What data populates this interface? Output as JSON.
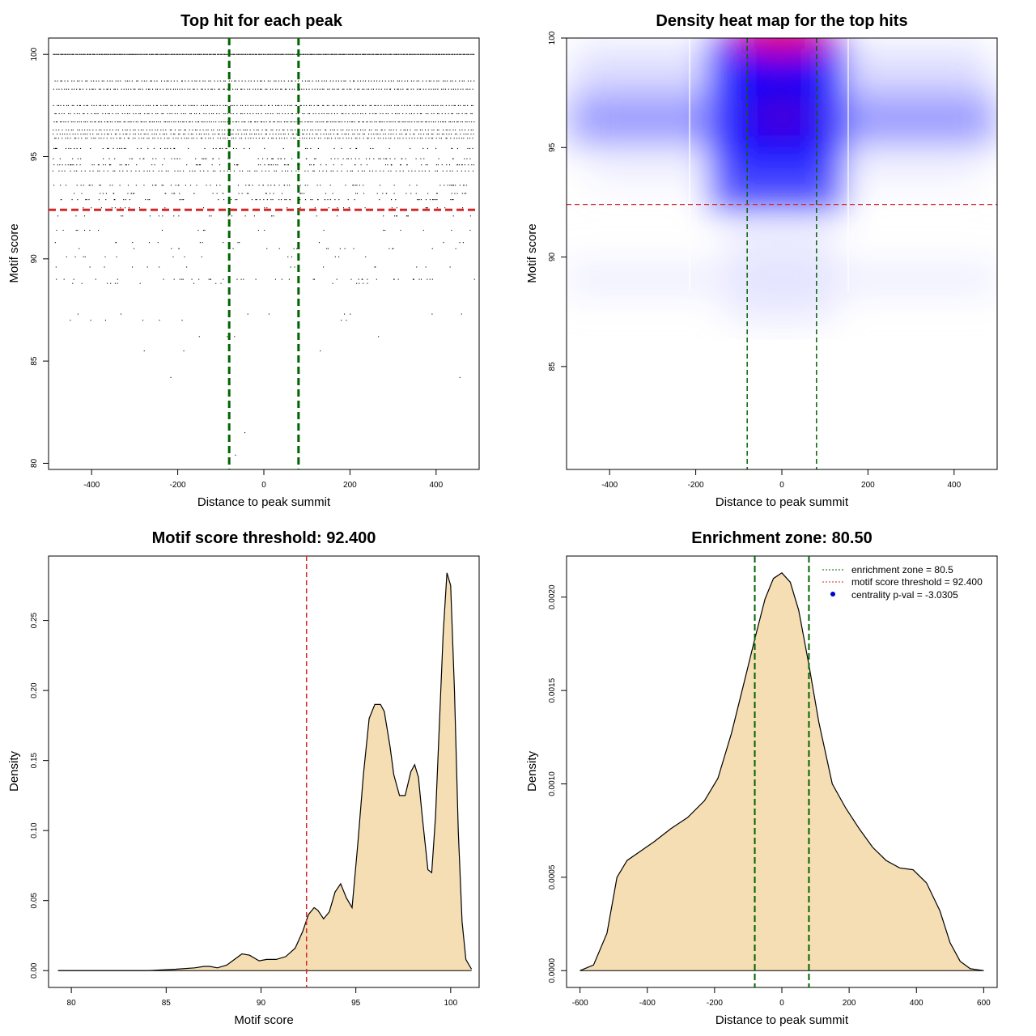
{
  "chart_data": [
    {
      "id": "scatter",
      "type": "scatter",
      "title": "Top hit for each peak",
      "xlabel": "Distance to peak summit",
      "ylabel": "Motif score",
      "xlim": [
        -500,
        500
      ],
      "ylim": [
        79.7,
        100.8
      ],
      "xticks": [
        -400,
        -200,
        0,
        200,
        400
      ],
      "yticks": [
        80,
        85,
        90,
        95,
        100
      ],
      "vlines": [
        {
          "x": -80.5,
          "color": "#006400",
          "style": "dashed"
        },
        {
          "x": 80.5,
          "color": "#006400",
          "style": "dashed"
        }
      ],
      "hline": {
        "y": 92.4,
        "color": "#d62728",
        "style": "dashed"
      },
      "point_bands": [
        {
          "score": 100.0,
          "count": 420
        },
        {
          "score": 98.7,
          "count": 150
        },
        {
          "score": 98.3,
          "count": 170
        },
        {
          "score": 97.5,
          "count": 170
        },
        {
          "score": 97.1,
          "count": 150
        },
        {
          "score": 96.7,
          "count": 200
        },
        {
          "score": 96.3,
          "count": 150
        },
        {
          "score": 96.1,
          "count": 160
        },
        {
          "score": 95.9,
          "count": 150
        },
        {
          "score": 95.4,
          "count": 70
        },
        {
          "score": 94.9,
          "count": 80
        },
        {
          "score": 94.6,
          "count": 100
        },
        {
          "score": 94.3,
          "count": 110
        },
        {
          "score": 93.6,
          "count": 80
        },
        {
          "score": 93.2,
          "count": 60
        },
        {
          "score": 92.9,
          "count": 70
        },
        {
          "score": 92.5,
          "count": 30
        },
        {
          "score": 92.1,
          "count": 30
        },
        {
          "score": 91.4,
          "count": 20
        },
        {
          "score": 90.8,
          "count": 15
        },
        {
          "score": 90.5,
          "count": 20
        },
        {
          "score": 90.1,
          "count": 15
        },
        {
          "score": 89.6,
          "count": 15
        },
        {
          "score": 89.0,
          "count": 45
        },
        {
          "score": 88.8,
          "count": 15
        },
        {
          "score": 87.3,
          "count": 8
        },
        {
          "score": 87.0,
          "count": 8
        },
        {
          "score": 86.2,
          "count": 4
        },
        {
          "score": 85.5,
          "count": 3
        },
        {
          "score": 84.2,
          "count": 2
        },
        {
          "score": 81.5,
          "count": 1
        },
        {
          "score": 80.4,
          "count": 1
        }
      ]
    },
    {
      "id": "heatmap",
      "type": "heatmap",
      "title": "Density heat map for the top hits",
      "xlabel": "Distance to peak summit",
      "ylabel": "Motif score",
      "xlim": [
        -500,
        500
      ],
      "ylim": [
        80.3,
        100.0
      ],
      "xticks": [
        -400,
        -200,
        0,
        200,
        400
      ],
      "yticks": [
        85,
        90,
        95,
        100
      ],
      "vlines": [
        {
          "x": -80.5,
          "color": "#006400",
          "style": "dashed"
        },
        {
          "x": 80.5,
          "color": "#006400",
          "style": "dashed"
        }
      ],
      "hline": {
        "y": 92.4,
        "color": "#d62728",
        "style": "dashed"
      },
      "colormap": [
        "#ffffff",
        "#0000ff",
        "#ff0000"
      ],
      "hot_spots": [
        {
          "x": 0,
          "y": 100.0,
          "level": "high"
        },
        {
          "x": 0,
          "y": 96.4,
          "level": "high"
        },
        {
          "x": 0,
          "y": 98.2,
          "level": "medium"
        },
        {
          "x": -250,
          "y": 96.4,
          "level": "medium"
        },
        {
          "x": 250,
          "y": 96.4,
          "level": "medium"
        }
      ]
    },
    {
      "id": "score_density",
      "type": "area",
      "title": "Motif score threshold: 92.400",
      "xlabel": "Motif score",
      "ylabel": "Density",
      "xlim": [
        78.8,
        101.5
      ],
      "ylim": [
        -0.012,
        0.296
      ],
      "xticks": [
        80,
        85,
        90,
        95,
        100
      ],
      "yticks": [
        0.0,
        0.05,
        0.1,
        0.15,
        0.2,
        0.25
      ],
      "ytick_labels": [
        "0.00",
        "0.05",
        "0.10",
        "0.15",
        "0.20",
        "0.25"
      ],
      "fill": "#f5deb3",
      "vline": {
        "x": 92.4,
        "color": "#d62728",
        "style": "dashed"
      },
      "x": [
        79.3,
        82.0,
        84.0,
        85.5,
        86.5,
        87.0,
        87.3,
        87.7,
        88.2,
        88.6,
        89.0,
        89.4,
        89.9,
        90.3,
        90.8,
        91.3,
        91.8,
        92.2,
        92.5,
        92.8,
        93.0,
        93.3,
        93.6,
        93.9,
        94.2,
        94.5,
        94.8,
        95.1,
        95.4,
        95.7,
        96.0,
        96.3,
        96.5,
        96.8,
        97.0,
        97.3,
        97.6,
        97.9,
        98.1,
        98.3,
        98.5,
        98.8,
        99.0,
        99.2,
        99.4,
        99.6,
        99.8,
        100.0,
        100.2,
        100.4,
        100.6,
        100.8,
        101.1
      ],
      "y": [
        0.0,
        0.0,
        0.0,
        0.001,
        0.002,
        0.003,
        0.003,
        0.002,
        0.004,
        0.008,
        0.012,
        0.011,
        0.007,
        0.008,
        0.008,
        0.01,
        0.016,
        0.028,
        0.04,
        0.045,
        0.043,
        0.037,
        0.042,
        0.056,
        0.062,
        0.052,
        0.045,
        0.09,
        0.14,
        0.18,
        0.19,
        0.19,
        0.185,
        0.16,
        0.14,
        0.125,
        0.125,
        0.142,
        0.147,
        0.138,
        0.11,
        0.072,
        0.07,
        0.11,
        0.175,
        0.24,
        0.284,
        0.275,
        0.2,
        0.1,
        0.035,
        0.008,
        0.001
      ]
    },
    {
      "id": "distance_density",
      "type": "area",
      "title": "Enrichment zone: 80.50",
      "xlabel": "Distance to peak summit",
      "ylabel": "Density",
      "xlim": [
        -640,
        640
      ],
      "ylim": [
        -9e-05,
        0.00222
      ],
      "xticks": [
        -600,
        -400,
        -200,
        0,
        200,
        400,
        600
      ],
      "yticks": [
        0.0,
        0.0005,
        0.001,
        0.0015,
        0.002
      ],
      "ytick_labels": [
        "0.0000",
        "0.0005",
        "0.0010",
        "0.0015",
        "0.0020"
      ],
      "fill": "#f5deb3",
      "vlines": [
        {
          "x": -80.5,
          "color": "#006400",
          "style": "dashed"
        },
        {
          "x": 80.5,
          "color": "#006400",
          "style": "dashed"
        }
      ],
      "x": [
        -600,
        -560,
        -520,
        -490,
        -460,
        -420,
        -380,
        -330,
        -280,
        -230,
        -190,
        -150,
        -110,
        -80,
        -50,
        -25,
        0,
        25,
        50,
        80,
        110,
        150,
        190,
        230,
        270,
        310,
        350,
        390,
        430,
        470,
        500,
        530,
        560,
        600
      ],
      "y": [
        0.0,
        3e-05,
        0.0002,
        0.0005,
        0.00059,
        0.00064,
        0.00069,
        0.00076,
        0.00082,
        0.00091,
        0.00103,
        0.00127,
        0.00156,
        0.00178,
        0.00199,
        0.0021,
        0.00213,
        0.00208,
        0.00193,
        0.00164,
        0.00133,
        0.001,
        0.00087,
        0.00076,
        0.00066,
        0.00059,
        0.00055,
        0.00054,
        0.00047,
        0.00032,
        0.00015,
        5e-05,
        1e-05,
        0.0
      ],
      "legend": {
        "position": "top-right",
        "entries": [
          {
            "label": "enrichment zone = 80.5",
            "color": "#006400",
            "kind": "line"
          },
          {
            "label": "motif score threshold = 92.400",
            "color": "#d62728",
            "kind": "line"
          },
          {
            "label": "centrality p-val = -3.0305",
            "color": "#0000cc",
            "kind": "point"
          }
        ]
      }
    }
  ]
}
